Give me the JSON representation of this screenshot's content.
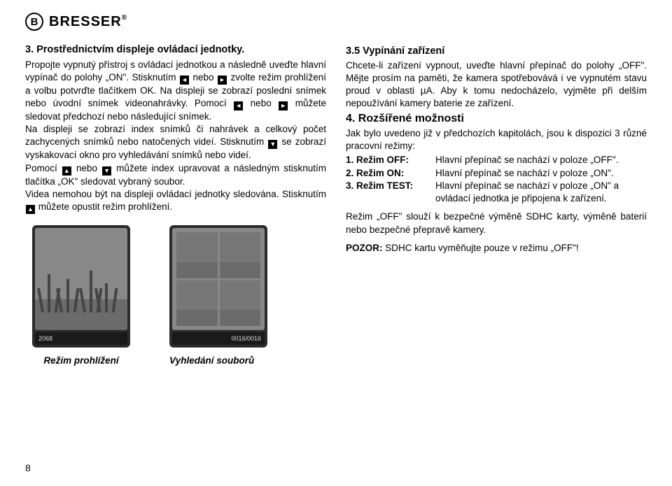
{
  "brand": "BRESSER",
  "left": {
    "heading": "3. Prostřednictvím displeje ovládací jednotky.",
    "p1a": "Propojte vypnutý přístroj s ovládací jednotkou a následně uveďte hlavní vypínač do polohy „ON\". Stisknutím ",
    "p1b": " nebo ",
    "p1c": " zvolte režim prohlížení a volbu potvrďte tlačítkem OK. Na displeji se zobrazí poslední snímek nebo úvodní snímek videonahrávky. Pomocí ",
    "p1d": " nebo ",
    "p1e": " můžete sledovat předchozí nebo následující snímek.",
    "p2a": "Na displeji se zobrazí index snímků či nahrávek a celkový počet zachycených snímků nebo natočených videí. Stisknutím ",
    "p2b": " se zobrazí vyskakovací okno pro vyhledávání snímků nebo videí.",
    "p3a": "Pomocí ",
    "p3b": " nebo ",
    "p3c": " můžete index upravovat a následným stisknutím tlačítka „OK\" sledovat vybraný soubor.",
    "p4a": "Videa nemohou být na displeji ovládací jednotky sledována. Stisknutím ",
    "p4b": " můžete opustit režim prohlížení.",
    "img1_label": "2068",
    "img2_label": "0016/0016",
    "caption1": "Režim prohlížení",
    "caption2": "Vyhledání souborů"
  },
  "right": {
    "h35": "3.5 Vypínání zařízení",
    "p35": "Chcete-li zařízení vypnout, uveďte hlavní přepínač do polohy „OFF\". Mějte prosím na paměti, že kamera spotřebovává i ve vypnutém stavu proud v oblasti µA. Aby k tomu nedocházelo, vyjměte při delším nepoužívání kamery baterie ze zařízení.",
    "h4": "4. Rozšířené možnosti",
    "p4intro": "Jak bylo uvedeno již v předchozích kapitolách, jsou k dispozici 3 různé pracovní režimy:",
    "modes": [
      {
        "label": "1. Režim OFF:",
        "desc": "Hlavní přepínač se nachází v poloze „OFF\"."
      },
      {
        "label": "2. Režim ON:",
        "desc": "Hlavní přepínač se nachází v poloze „ON\"."
      },
      {
        "label": "3. Režim TEST:",
        "desc": "Hlavní přepínač se nachází v poloze „ON\" a ovládací jednotka je připojena k zařízení."
      }
    ],
    "p_off": "Režim „OFF\" slouží k bezpečné výměně SDHC karty, výměně baterií nebo bezpečné přepravě kamery.",
    "pozor_label": "POZOR:",
    "pozor_text": " SDHC kartu vyměňujte pouze v režimu „OFF\"!"
  },
  "page": "8"
}
